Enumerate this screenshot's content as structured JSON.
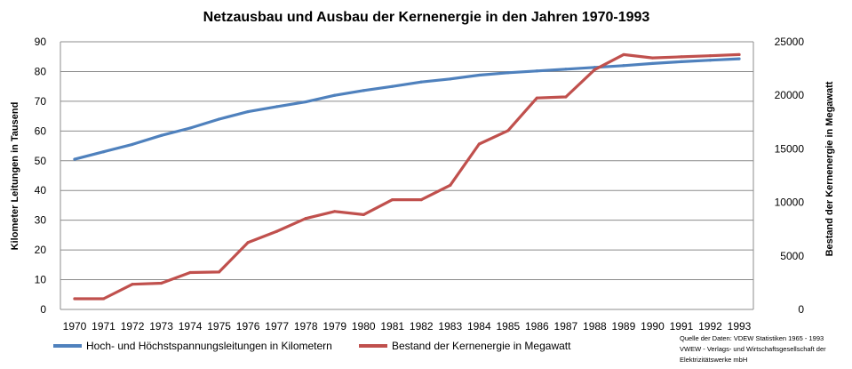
{
  "chart_data": {
    "type": "line",
    "title": "Netzausbau und Ausbau der Kernenergie in den Jahren 1970-1993",
    "ylabel_left": "Kilometer Leitungen in Tausend",
    "ylabel_right": "Bestand der Kernenergie in Megawatt",
    "x": [
      "1970",
      "1971",
      "1972",
      "1973",
      "1974",
      "1975",
      "1976",
      "1977",
      "1978",
      "1979",
      "1980",
      "1981",
      "1982",
      "1983",
      "1984",
      "1985",
      "1986",
      "1987",
      "1988",
      "1989",
      "1990",
      "1991",
      "1992",
      "1993"
    ],
    "ylim_left": [
      0,
      90
    ],
    "yticks_left": [
      "0",
      "10",
      "20",
      "30",
      "40",
      "50",
      "60",
      "70",
      "80",
      "90"
    ],
    "ylim_right": [
      0,
      25000
    ],
    "yticks_right": [
      "0",
      "5000",
      "10000",
      "15000",
      "20000",
      "25000"
    ],
    "grid": true,
    "legend_position": "bottom",
    "series": [
      {
        "name": "Hoch- und Höchstspannungsleitungen in Kilometern",
        "axis": "left",
        "color": "#4F81BD",
        "values": [
          50.5,
          53,
          55.5,
          58.5,
          61,
          64,
          66.5,
          68.2,
          69.8,
          72,
          73.6,
          75,
          76.5,
          77.5,
          78.8,
          79.6,
          80.2,
          80.8,
          81.4,
          82,
          82.7,
          83.3,
          83.8,
          84.3
        ]
      },
      {
        "name": "Bestand der Kernenergie in Megawatt",
        "axis": "right",
        "color": "#C0504D",
        "values": [
          1000,
          1000,
          2350,
          2450,
          3450,
          3500,
          6250,
          7300,
          8500,
          9150,
          8850,
          10250,
          10250,
          11600,
          15450,
          16700,
          19750,
          19850,
          22400,
          23800,
          23500,
          23600,
          23700,
          23800
        ]
      }
    ]
  },
  "source_note": {
    "line1": "Quelle der Daten: VDEW Statistiken 1965 - 1993",
    "line2": "VWEW - Verlags- und Wirtschaftsgesellschaft der",
    "line3": "Elektrizitätswerke mbH"
  }
}
